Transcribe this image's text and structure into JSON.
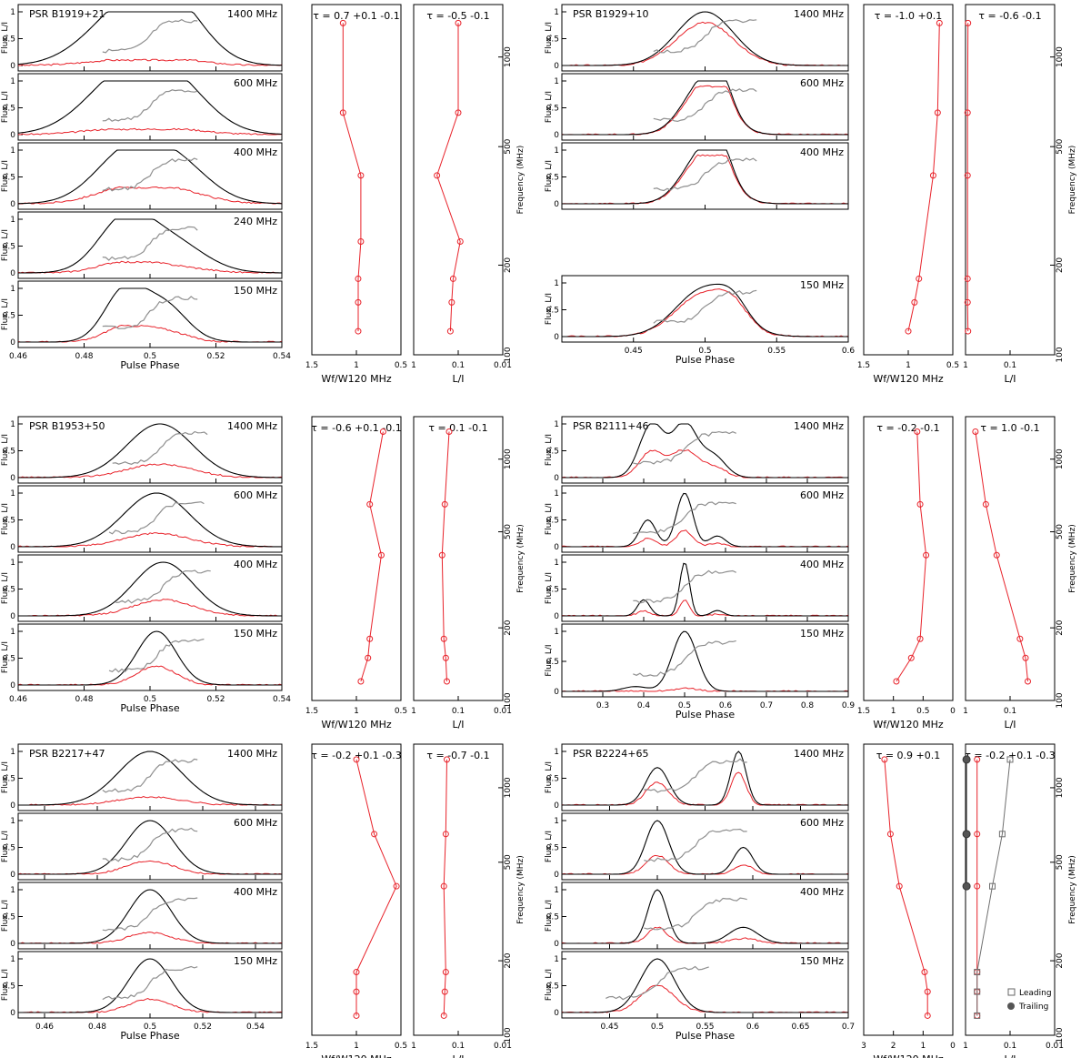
{
  "figure": {
    "title": "Polarization profiles, widths and linear fractions for six pulsars"
  },
  "labels": {
    "flux_axis": "Flux, L/I",
    "pulse_phase": "Pulse Phase",
    "frequency": "Frequency (MHz)",
    "width_axis": "Wf/W120 MHz",
    "lfrac_axis": "L/I"
  },
  "legend": {
    "leading": "Leading",
    "trailing": "Trailing"
  },
  "chart_data": [
    {
      "pulsar": "PSR B1919+21",
      "type": "line",
      "xlabel": "Pulse Phase",
      "xlim": [
        0.46,
        0.54
      ],
      "xticks": [
        "0.46",
        "0.48",
        "0.5",
        "0.52",
        "0.54"
      ],
      "profiles": [
        {
          "freq": "1400 MHz",
          "center": 0.5,
          "peaks": [
            [
              0.493,
              1.0,
              0.012
            ],
            [
              0.507,
              0.9,
              0.01
            ]
          ],
          "lin": 0.1
        },
        {
          "freq": "600 MHz",
          "center": 0.5,
          "peaks": [
            [
              0.492,
              1.0,
              0.012
            ],
            [
              0.507,
              0.8,
              0.011
            ]
          ],
          "lin": 0.1
        },
        {
          "freq": "400 MHz",
          "center": 0.5,
          "peaks": [
            [
              0.493,
              0.9,
              0.01
            ],
            [
              0.508,
              0.7,
              0.01
            ]
          ],
          "lin": 0.3
        },
        {
          "freq": "240 MHz",
          "center": 0.5,
          "peaks": [
            [
              0.492,
              0.9,
              0.008
            ],
            [
              0.506,
              0.6,
              0.01
            ]
          ],
          "lin": 0.2
        },
        {
          "freq": "150 MHz",
          "center": 0.5,
          "peaks": [
            [
              0.492,
              0.9,
              0.006
            ],
            [
              0.504,
              0.7,
              0.007
            ]
          ],
          "lin": 0.3
        }
      ],
      "width_panel": {
        "label": "τ = 0.7 +0.1 -0.1",
        "xlim": [
          1.5,
          0.5
        ],
        "xticks": [
          "1.5",
          "1",
          "0.5"
        ],
        "values": [
          [
            1.15,
            1300
          ],
          [
            1.15,
            650
          ],
          [
            0.95,
            400
          ],
          [
            0.95,
            240
          ],
          [
            0.98,
            180
          ],
          [
            0.98,
            150
          ],
          [
            0.98,
            120
          ]
        ]
      },
      "lfrac_panel": {
        "label": "τ = -0.5 -0.1",
        "xlim": [
          1,
          0.01
        ],
        "xticks": [
          "1",
          "0.1",
          "0.01"
        ],
        "values": [
          [
            0.1,
            1300
          ],
          [
            0.1,
            650
          ],
          [
            0.3,
            400
          ],
          [
            0.09,
            240
          ],
          [
            0.13,
            180
          ],
          [
            0.14,
            150
          ],
          [
            0.15,
            120
          ]
        ]
      }
    },
    {
      "pulsar": "PSR B1929+10",
      "type": "line",
      "xlabel": "Pulse Phase",
      "xlim": [
        0.4,
        0.6
      ],
      "xticks": [
        "0.45",
        "0.5",
        "0.55",
        "0.6"
      ],
      "profiles": [
        {
          "freq": "1400 MHz",
          "center": 0.5,
          "peaks": [
            [
              0.5,
              1.0,
              0.02
            ]
          ],
          "lin": 0.8
        },
        {
          "freq": "600 MHz",
          "center": 0.5,
          "peaks": [
            [
              0.5,
              1.0,
              0.015
            ],
            [
              0.51,
              0.5,
              0.008
            ]
          ],
          "lin": 0.9
        },
        {
          "freq": "400 MHz",
          "center": 0.5,
          "peaks": [
            [
              0.5,
              1.0,
              0.015
            ],
            [
              0.51,
              0.5,
              0.008
            ]
          ],
          "lin": 0.9
        },
        {
          "freq": "150 MHz",
          "center": 0.5,
          "peaks": [
            [
              0.5,
              0.9,
              0.02
            ],
            [
              0.52,
              0.3,
              0.01
            ]
          ],
          "lin": 0.9
        }
      ],
      "width_panel": {
        "label": "τ = -1.0 +0.1",
        "xlim": [
          1.5,
          0.5
        ],
        "xticks": [
          "1.5",
          "1",
          "0.5"
        ],
        "values": [
          [
            0.65,
            1300
          ],
          [
            0.67,
            650
          ],
          [
            0.72,
            400
          ],
          [
            0.88,
            180
          ],
          [
            0.93,
            150
          ],
          [
            1.0,
            120
          ]
        ]
      },
      "lfrac_panel": {
        "label": "τ = -0.6 -0.1",
        "xlim": [
          1,
          0.01
        ],
        "xticks": [
          "1",
          "0.1"
        ],
        "values": [
          [
            0.88,
            1300
          ],
          [
            0.9,
            650
          ],
          [
            0.9,
            400
          ],
          [
            0.9,
            180
          ],
          [
            0.9,
            150
          ],
          [
            0.88,
            120
          ]
        ]
      }
    },
    {
      "pulsar": "PSR B1953+50",
      "type": "line",
      "xlabel": "Pulse Phase",
      "xlim": [
        0.46,
        0.54
      ],
      "xticks": [
        "0.46",
        "0.48",
        "0.5",
        "0.52",
        "0.54"
      ],
      "profiles": [
        {
          "freq": "1400 MHz",
          "center": 0.503,
          "peaks": [
            [
              0.503,
              1.0,
              0.01
            ]
          ],
          "lin": 0.25
        },
        {
          "freq": "600 MHz",
          "center": 0.502,
          "peaks": [
            [
              0.502,
              1.0,
              0.01
            ]
          ],
          "lin": 0.25
        },
        {
          "freq": "400 MHz",
          "center": 0.504,
          "peaks": [
            [
              0.504,
              1.0,
              0.009
            ]
          ],
          "lin": 0.3
        },
        {
          "freq": "150 MHz",
          "center": 0.502,
          "peaks": [
            [
              0.502,
              1.0,
              0.006
            ]
          ],
          "lin": 0.35
        }
      ],
      "width_panel": {
        "label": "τ = -0.6 +0.1 -0.1",
        "xlim": [
          1.5,
          0.5
        ],
        "xticks": [
          "1.5",
          "1",
          "0.5"
        ],
        "values": [
          [
            0.7,
            1300
          ],
          [
            0.85,
            650
          ],
          [
            0.72,
            400
          ],
          [
            0.85,
            180
          ],
          [
            0.87,
            150
          ],
          [
            0.95,
            120
          ]
        ]
      },
      "lfrac_panel": {
        "label": "τ = 0.1 -0.1",
        "xlim": [
          1,
          0.01
        ],
        "xticks": [
          "1",
          "0.1",
          "0.01"
        ],
        "values": [
          [
            0.16,
            1300
          ],
          [
            0.2,
            650
          ],
          [
            0.23,
            400
          ],
          [
            0.21,
            180
          ],
          [
            0.19,
            150
          ],
          [
            0.18,
            120
          ]
        ]
      }
    },
    {
      "pulsar": "PSR B2111+46",
      "type": "line",
      "xlabel": "Pulse Phase",
      "xlim": [
        0.2,
        0.9
      ],
      "xticks": [
        "0.3",
        "0.4",
        "0.5",
        "0.6",
        "0.7",
        "0.8",
        "0.9"
      ],
      "profiles": [
        {
          "freq": "1400 MHz",
          "center": 0.5,
          "peaks": [
            [
              0.42,
              1.0,
              0.03
            ],
            [
              0.5,
              1.0,
              0.03
            ],
            [
              0.57,
              0.4,
              0.03
            ]
          ],
          "lin": 0.5
        },
        {
          "freq": "600 MHz",
          "center": 0.5,
          "peaks": [
            [
              0.41,
              0.5,
              0.02
            ],
            [
              0.5,
              1.0,
              0.02
            ],
            [
              0.58,
              0.2,
              0.02
            ]
          ],
          "lin": 0.3
        },
        {
          "freq": "400 MHz",
          "center": 0.5,
          "peaks": [
            [
              0.4,
              0.3,
              0.015
            ],
            [
              0.5,
              1.0,
              0.012
            ],
            [
              0.58,
              0.1,
              0.015
            ]
          ],
          "lin": 0.3
        },
        {
          "freq": "150 MHz",
          "center": 0.5,
          "peaks": [
            [
              0.5,
              1.0,
              0.03
            ],
            [
              0.38,
              0.08,
              0.03
            ]
          ],
          "lin": 0.05
        }
      ],
      "width_panel": {
        "label": "τ = -0.2 -0.1",
        "xlim": [
          1.5,
          0
        ],
        "xticks": [
          "1.5",
          "1",
          "0.5",
          "0"
        ],
        "values": [
          [
            0.6,
            1300
          ],
          [
            0.55,
            650
          ],
          [
            0.45,
            400
          ],
          [
            0.55,
            180
          ],
          [
            0.7,
            150
          ],
          [
            0.95,
            120
          ]
        ]
      },
      "lfrac_panel": {
        "label": "τ = 1.0 -0.1",
        "xlim": [
          1,
          0.01
        ],
        "xticks": [
          "1",
          "0.1"
        ],
        "values": [
          [
            0.6,
            1300
          ],
          [
            0.35,
            650
          ],
          [
            0.2,
            400
          ],
          [
            0.06,
            180
          ],
          [
            0.045,
            150
          ],
          [
            0.04,
            120
          ]
        ]
      }
    },
    {
      "pulsar": "PSR B2217+47",
      "type": "line",
      "xlabel": "Pulse Phase",
      "xlim": [
        0.45,
        0.55
      ],
      "xticks": [
        "0.46",
        "0.48",
        "0.5",
        "0.52",
        "0.54"
      ],
      "profiles": [
        {
          "freq": "1400 MHz",
          "center": 0.5,
          "peaks": [
            [
              0.5,
              1.0,
              0.012
            ]
          ],
          "lin": 0.15
        },
        {
          "freq": "600 MHz",
          "center": 0.5,
          "peaks": [
            [
              0.5,
              1.0,
              0.009
            ]
          ],
          "lin": 0.25
        },
        {
          "freq": "400 MHz",
          "center": 0.5,
          "peaks": [
            [
              0.5,
              1.0,
              0.008
            ]
          ],
          "lin": 0.2
        },
        {
          "freq": "150 MHz",
          "center": 0.5,
          "peaks": [
            [
              0.5,
              1.0,
              0.008
            ]
          ],
          "lin": 0.25
        }
      ],
      "width_panel": {
        "label": "τ = -0.2 +0.1 -0.3",
        "xlim": [
          1.5,
          0.5
        ],
        "xticks": [
          "1.5",
          "1",
          "0.5"
        ],
        "values": [
          [
            1.0,
            1300
          ],
          [
            0.8,
            650
          ],
          [
            0.55,
            400
          ],
          [
            1.0,
            180
          ],
          [
            1.0,
            150
          ],
          [
            1.0,
            120
          ]
        ]
      },
      "lfrac_panel": {
        "label": "τ = -0.7 -0.1",
        "xlim": [
          1,
          0.01
        ],
        "xticks": [
          "1",
          "0.1",
          "0.01"
        ],
        "values": [
          [
            0.18,
            1300
          ],
          [
            0.19,
            650
          ],
          [
            0.21,
            400
          ],
          [
            0.19,
            180
          ],
          [
            0.2,
            150
          ],
          [
            0.21,
            120
          ]
        ]
      }
    },
    {
      "pulsar": "PSR B2224+65",
      "type": "line",
      "xlabel": "Pulse Phase",
      "xlim": [
        0.4,
        0.7
      ],
      "xticks": [
        "0.45",
        "0.5",
        "0.55",
        "0.6",
        "0.65",
        "0.7"
      ],
      "profiles": [
        {
          "freq": "1400 MHz",
          "center": 0.54,
          "peaks": [
            [
              0.5,
              0.7,
              0.012
            ],
            [
              0.585,
              1.0,
              0.008
            ]
          ],
          "lin": 0.6
        },
        {
          "freq": "600 MHz",
          "center": 0.54,
          "peaks": [
            [
              0.5,
              1.0,
              0.012
            ],
            [
              0.59,
              0.5,
              0.01
            ]
          ],
          "lin": 0.35
        },
        {
          "freq": "400 MHz",
          "center": 0.54,
          "peaks": [
            [
              0.5,
              1.0,
              0.01
            ],
            [
              0.59,
              0.3,
              0.015
            ]
          ],
          "lin": 0.3
        },
        {
          "freq": "150 MHz",
          "center": 0.5,
          "peaks": [
            [
              0.5,
              1.0,
              0.018
            ]
          ],
          "lin": 0.5
        }
      ],
      "width_panel": {
        "label": "τ = 0.9 +0.1",
        "xlim": [
          3,
          0
        ],
        "xticks": [
          "3",
          "2",
          "1",
          "0"
        ],
        "values": [
          [
            2.3,
            1300
          ],
          [
            2.1,
            650
          ],
          [
            1.8,
            400
          ],
          [
            0.95,
            180
          ],
          [
            0.85,
            150
          ],
          [
            0.85,
            120
          ]
        ]
      },
      "lfrac_panel": {
        "label": "τ = -0.2 +0.1 -0.3",
        "xlim": [
          1,
          0.01
        ],
        "xticks": [
          "1",
          "0.1",
          "0.01"
        ],
        "values": [
          [
            0.55,
            1300
          ],
          [
            0.55,
            650
          ],
          [
            0.55,
            400
          ],
          [
            0.55,
            180
          ],
          [
            0.55,
            150
          ],
          [
            0.55,
            120
          ]
        ],
        "leading": [
          [
            0.1,
            1300
          ],
          [
            0.15,
            650
          ],
          [
            0.25,
            400
          ],
          [
            0.55,
            180
          ],
          [
            0.55,
            150
          ],
          [
            0.55,
            120
          ]
        ],
        "trailing": [
          [
            0.95,
            1300
          ],
          [
            0.95,
            650
          ],
          [
            0.95,
            400
          ]
        ]
      }
    }
  ],
  "colors": {
    "total": "#000000",
    "linear": "#e8222a",
    "pa": "#8f8f8f",
    "points": "#e8222a",
    "leading": "#6f6f6f"
  }
}
